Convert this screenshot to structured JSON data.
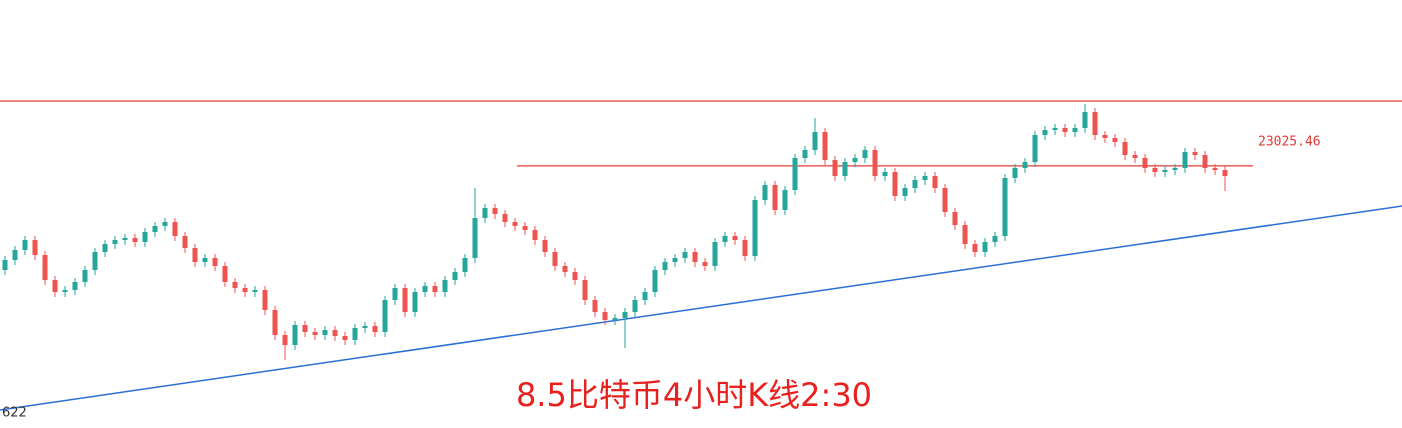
{
  "chart_data": {
    "type": "candlestick",
    "annotation": "8.5比特币4小时K线2:30",
    "ylim": [
      21715,
      23855
    ],
    "up_color": "#26a69a",
    "down_color": "#ef5350",
    "levels": [
      {
        "value": 23350,
        "color": "#e53935"
      },
      {
        "value": 23025.46,
        "color": "#e53935"
      }
    ],
    "trendline": {
      "values": [
        21805,
        22825
      ],
      "color": "#2a6fd6",
      "label": "622"
    },
    "ohlc": [
      [
        22505,
        22575,
        22480,
        22555
      ],
      [
        22555,
        22625,
        22530,
        22605
      ],
      [
        22605,
        22675,
        22580,
        22655
      ],
      [
        22655,
        22675,
        22555,
        22580
      ],
      [
        22580,
        22600,
        22430,
        22455
      ],
      [
        22455,
        22475,
        22370,
        22395
      ],
      [
        22395,
        22425,
        22370,
        22405
      ],
      [
        22405,
        22465,
        22380,
        22445
      ],
      [
        22445,
        22525,
        22420,
        22505
      ],
      [
        22505,
        22615,
        22480,
        22595
      ],
      [
        22595,
        22655,
        22570,
        22635
      ],
      [
        22635,
        22675,
        22610,
        22655
      ],
      [
        22655,
        22685,
        22630,
        22665
      ],
      [
        22665,
        22685,
        22620,
        22645
      ],
      [
        22645,
        22715,
        22620,
        22695
      ],
      [
        22695,
        22745,
        22670,
        22725
      ],
      [
        22725,
        22765,
        22700,
        22745
      ],
      [
        22745,
        22765,
        22650,
        22675
      ],
      [
        22675,
        22695,
        22590,
        22615
      ],
      [
        22615,
        22635,
        22520,
        22545
      ],
      [
        22545,
        22585,
        22520,
        22565
      ],
      [
        22565,
        22585,
        22500,
        22525
      ],
      [
        22525,
        22545,
        22420,
        22445
      ],
      [
        22445,
        22465,
        22390,
        22415
      ],
      [
        22415,
        22435,
        22370,
        22395
      ],
      [
        22395,
        22425,
        22370,
        22405
      ],
      [
        22405,
        22425,
        22280,
        22305
      ],
      [
        22305,
        22325,
        22155,
        22180
      ],
      [
        22180,
        22200,
        22055,
        22130
      ],
      [
        22130,
        22250,
        22105,
        22230
      ],
      [
        22230,
        22250,
        22170,
        22195
      ],
      [
        22195,
        22215,
        22155,
        22180
      ],
      [
        22180,
        22225,
        22155,
        22205
      ],
      [
        22205,
        22225,
        22150,
        22175
      ],
      [
        22175,
        22195,
        22130,
        22155
      ],
      [
        22155,
        22235,
        22130,
        22215
      ],
      [
        22215,
        22245,
        22190,
        22225
      ],
      [
        22225,
        22245,
        22170,
        22195
      ],
      [
        22195,
        22375,
        22170,
        22355
      ],
      [
        22355,
        22435,
        22330,
        22415
      ],
      [
        22415,
        22435,
        22270,
        22295
      ],
      [
        22295,
        22415,
        22270,
        22395
      ],
      [
        22395,
        22445,
        22370,
        22425
      ],
      [
        22425,
        22445,
        22370,
        22395
      ],
      [
        22395,
        22475,
        22370,
        22455
      ],
      [
        22455,
        22515,
        22430,
        22495
      ],
      [
        22495,
        22585,
        22470,
        22565
      ],
      [
        22565,
        22915,
        22540,
        22765
      ],
      [
        22765,
        22835,
        22740,
        22815
      ],
      [
        22815,
        22835,
        22760,
        22785
      ],
      [
        22785,
        22805,
        22720,
        22745
      ],
      [
        22745,
        22765,
        22700,
        22725
      ],
      [
        22725,
        22745,
        22680,
        22705
      ],
      [
        22705,
        22725,
        22630,
        22655
      ],
      [
        22655,
        22675,
        22570,
        22595
      ],
      [
        22595,
        22615,
        22500,
        22525
      ],
      [
        22525,
        22545,
        22470,
        22495
      ],
      [
        22495,
        22515,
        22430,
        22455
      ],
      [
        22455,
        22475,
        22330,
        22355
      ],
      [
        22355,
        22375,
        22270,
        22295
      ],
      [
        22295,
        22315,
        22230,
        22255
      ],
      [
        22255,
        22285,
        22230,
        22265
      ],
      [
        22265,
        22315,
        22115,
        22295
      ],
      [
        22295,
        22375,
        22270,
        22355
      ],
      [
        22355,
        22415,
        22330,
        22395
      ],
      [
        22395,
        22525,
        22370,
        22505
      ],
      [
        22505,
        22565,
        22480,
        22545
      ],
      [
        22545,
        22585,
        22520,
        22565
      ],
      [
        22565,
        22615,
        22540,
        22595
      ],
      [
        22595,
        22615,
        22520,
        22545
      ],
      [
        22545,
        22565,
        22500,
        22525
      ],
      [
        22525,
        22665,
        22500,
        22645
      ],
      [
        22645,
        22695,
        22620,
        22675
      ],
      [
        22675,
        22695,
        22630,
        22655
      ],
      [
        22655,
        22675,
        22550,
        22575
      ],
      [
        22575,
        22875,
        22550,
        22855
      ],
      [
        22855,
        22950,
        22830,
        22930
      ],
      [
        22930,
        22950,
        22780,
        22805
      ],
      [
        22805,
        22925,
        22780,
        22905
      ],
      [
        22905,
        23085,
        22880,
        23065
      ],
      [
        23065,
        23125,
        23040,
        23105
      ],
      [
        23105,
        23265,
        23080,
        23195
      ],
      [
        23195,
        23215,
        23030,
        23055
      ],
      [
        23055,
        23075,
        22950,
        22975
      ],
      [
        22975,
        23065,
        22950,
        23045
      ],
      [
        23045,
        23085,
        23020,
        23065
      ],
      [
        23065,
        23125,
        23040,
        23105
      ],
      [
        23105,
        23125,
        22950,
        22975
      ],
      [
        22975,
        23015,
        22950,
        22995
      ],
      [
        22995,
        23015,
        22850,
        22875
      ],
      [
        22875,
        22935,
        22850,
        22915
      ],
      [
        22915,
        22975,
        22890,
        22955
      ],
      [
        22955,
        22995,
        22930,
        22975
      ],
      [
        22975,
        22995,
        22890,
        22915
      ],
      [
        22915,
        22935,
        22770,
        22795
      ],
      [
        22795,
        22815,
        22705,
        22730
      ],
      [
        22730,
        22750,
        22610,
        22635
      ],
      [
        22635,
        22655,
        22570,
        22595
      ],
      [
        22595,
        22665,
        22570,
        22645
      ],
      [
        22645,
        22695,
        22620,
        22675
      ],
      [
        22675,
        22985,
        22650,
        22965
      ],
      [
        22965,
        23035,
        22940,
        23015
      ],
      [
        23015,
        23065,
        22990,
        23045
      ],
      [
        23045,
        23200,
        23020,
        23180
      ],
      [
        23180,
        23225,
        23155,
        23205
      ],
      [
        23205,
        23235,
        23180,
        23215
      ],
      [
        23215,
        23235,
        23170,
        23195
      ],
      [
        23195,
        23235,
        23170,
        23215
      ],
      [
        23215,
        23335,
        23190,
        23295
      ],
      [
        23295,
        23315,
        23155,
        23180
      ],
      [
        23180,
        23200,
        23140,
        23165
      ],
      [
        23165,
        23185,
        23120,
        23145
      ],
      [
        23145,
        23165,
        23055,
        23080
      ],
      [
        23080,
        23100,
        23040,
        23065
      ],
      [
        23065,
        23085,
        22990,
        23015
      ],
      [
        23015,
        23035,
        22970,
        22995
      ],
      [
        22995,
        23025,
        22970,
        23005
      ],
      [
        23005,
        23035,
        22980,
        23015
      ],
      [
        23015,
        23115,
        22990,
        23095
      ],
      [
        23095,
        23115,
        23055,
        23080
      ],
      [
        23080,
        23100,
        22990,
        23015
      ],
      [
        23015,
        23035,
        22980,
        23005
      ],
      [
        23005,
        23025,
        22900,
        22975
      ]
    ]
  }
}
